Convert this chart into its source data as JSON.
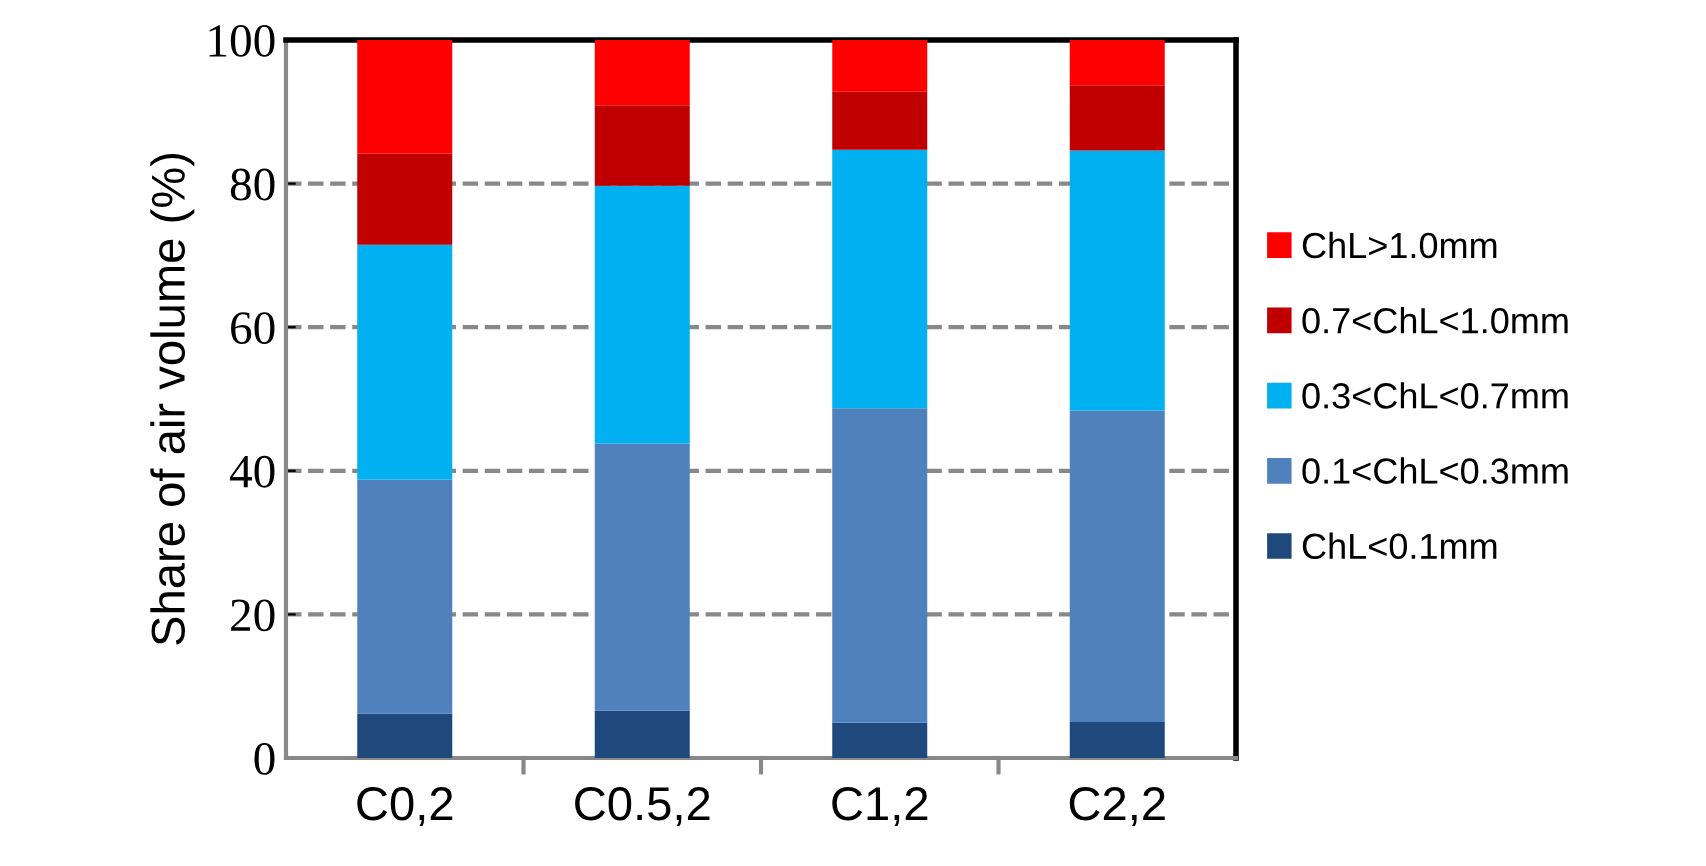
{
  "chart_data": {
    "type": "bar",
    "stacked": true,
    "ylabel": "Share of air volume (%)",
    "categories": [
      "C0,2",
      "C0.5,2",
      "C1,2",
      "C2,2"
    ],
    "series": [
      {
        "name": "ChL<0.1mm",
        "color": "#1f497d",
        "values": [
          6.2,
          6.6,
          4.9,
          5.0
        ]
      },
      {
        "name": "0.1<ChL<0.3mm",
        "color": "#4f81bd",
        "values": [
          32.6,
          37.2,
          43.8,
          43.4
        ]
      },
      {
        "name": "0.3<ChL<0.7mm",
        "color": "#00b0f0",
        "values": [
          32.7,
          35.9,
          36.0,
          36.2
        ]
      },
      {
        "name": "0.7<ChL<1.0mm",
        "color": "#c00000",
        "values": [
          12.7,
          11.2,
          8.1,
          9.1
        ]
      },
      {
        "name": "ChL>1.0mm",
        "color": "#ff0000",
        "values": [
          15.8,
          9.1,
          7.2,
          6.3
        ]
      }
    ],
    "ylim": [
      0,
      100
    ],
    "yticks": [
      0,
      20,
      40,
      60,
      80,
      100
    ],
    "grid": "y",
    "line_style": "dashed",
    "legend": "right"
  }
}
